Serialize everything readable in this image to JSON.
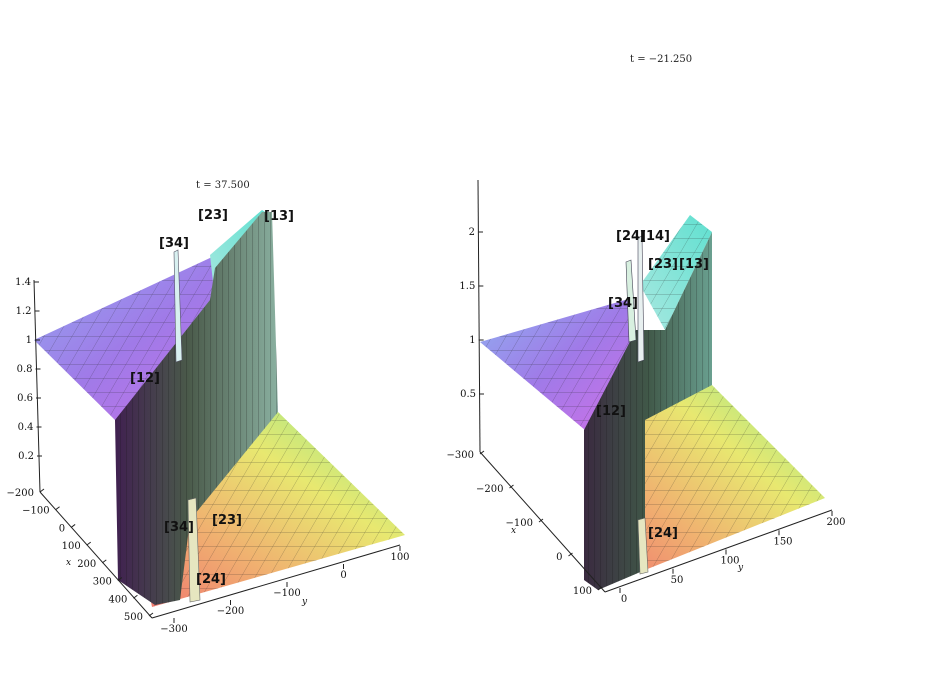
{
  "chart_data": [
    {
      "type": "surface",
      "title": "t = 37.500",
      "xlabel": "x",
      "ylabel": "y",
      "z_ticks": [
        "1.4",
        "1.2",
        "1",
        "0.8",
        "0.6",
        "0.4",
        "0.2"
      ],
      "x_ticks": [
        "−200",
        "−100",
        "0",
        "100",
        "200",
        "300",
        "400",
        "500"
      ],
      "y_ticks": [
        "100",
        "0",
        "−100",
        "−200",
        "−300"
      ],
      "annotations": [
        "[34]",
        "[23]",
        "[13]",
        "[12]",
        "[34]",
        "[23]",
        "[24]"
      ]
    },
    {
      "type": "surface",
      "title": "t = −21.250",
      "xlabel": "x",
      "ylabel": "y",
      "z_ticks": [
        "2",
        "1.5",
        "1",
        "0.5"
      ],
      "x_ticks": [
        "−300",
        "−200",
        "−100",
        "0",
        "100"
      ],
      "y_ticks": [
        "200",
        "150",
        "100",
        "50",
        "0"
      ],
      "annotations": [
        "[24]",
        "[14]",
        "[23]",
        "[13]",
        "[34]",
        "[12]",
        "[24]"
      ]
    }
  ],
  "colors": {
    "left_plane": "#a078e8",
    "front_left": "#e06aa0",
    "front_right": "#e8e070",
    "right_plane": "#70e0c8"
  }
}
